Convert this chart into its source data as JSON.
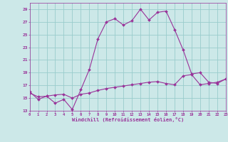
{
  "xlabel": "Windchill (Refroidissement éolien,°C)",
  "bg_color": "#cce8e8",
  "line_color": "#993399",
  "grid_color": "#99cccc",
  "hours": [
    0,
    1,
    2,
    3,
    4,
    5,
    6,
    7,
    8,
    9,
    10,
    11,
    12,
    13,
    14,
    15,
    16,
    17,
    18,
    19,
    20,
    21,
    22,
    23
  ],
  "temp": [
    16.0,
    14.8,
    15.3,
    14.2,
    14.8,
    13.2,
    16.3,
    19.5,
    24.3,
    27.0,
    27.5,
    26.5,
    27.2,
    29.0,
    27.3,
    28.5,
    28.7,
    25.8,
    22.6,
    18.8,
    19.0,
    17.5,
    17.3,
    18.0
  ],
  "windchill": [
    15.8,
    15.2,
    15.3,
    15.5,
    15.6,
    15.0,
    15.6,
    15.8,
    16.2,
    16.5,
    16.7,
    16.9,
    17.1,
    17.3,
    17.5,
    17.6,
    17.3,
    17.1,
    18.5,
    18.7,
    17.1,
    17.3,
    17.5,
    18.0
  ],
  "ylim": [
    13,
    30
  ],
  "yticks": [
    13,
    15,
    17,
    19,
    21,
    23,
    25,
    27,
    29
  ],
  "xlim": [
    0,
    23
  ],
  "xticks": [
    0,
    1,
    2,
    3,
    4,
    5,
    6,
    7,
    8,
    9,
    10,
    11,
    12,
    13,
    14,
    15,
    16,
    17,
    18,
    19,
    20,
    21,
    22,
    23
  ]
}
